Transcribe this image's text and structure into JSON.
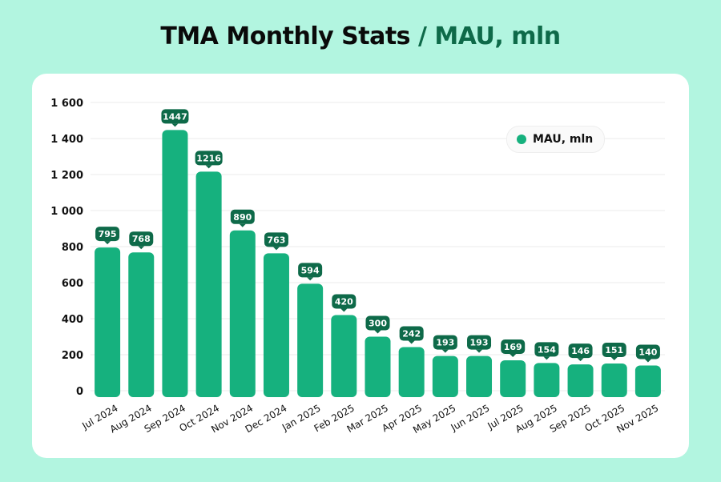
{
  "title": {
    "main": "TMA Monthly Stats",
    "sub": "/ MAU, mln"
  },
  "chart_data": {
    "type": "bar",
    "title": "TMA Monthly Stats / MAU, mln",
    "categories": [
      "Jul 2024",
      "Aug 2024",
      "Sep 2024",
      "Oct 2024",
      "Nov 2024",
      "Dec 2024",
      "Jan 2025",
      "Feb 2025",
      "Mar 2025",
      "Apr 2025",
      "May 2025",
      "Jun 2025",
      "Jul 2025",
      "Aug 2025",
      "Sep 2025",
      "Oct 2025",
      "Nov 2025"
    ],
    "series": [
      {
        "name": "MAU, mln",
        "values": [
          795,
          768,
          1447,
          1216,
          890,
          763,
          594,
          420,
          300,
          242,
          193,
          193,
          169,
          154,
          146,
          151,
          140
        ]
      }
    ],
    "ylim": [
      0,
      1600
    ],
    "yticks": [
      0,
      200,
      400,
      600,
      800,
      1000,
      1200,
      1400,
      1600
    ],
    "ytick_labels": [
      "0",
      "200",
      "400",
      "600",
      "800",
      "1 000",
      "1 200",
      "1 400",
      "1 600"
    ],
    "grid": true,
    "legend": "top-right",
    "colors": {
      "bar": "#16b17e",
      "label": "#0e6a49",
      "accent_title": "#0e6a49"
    }
  }
}
